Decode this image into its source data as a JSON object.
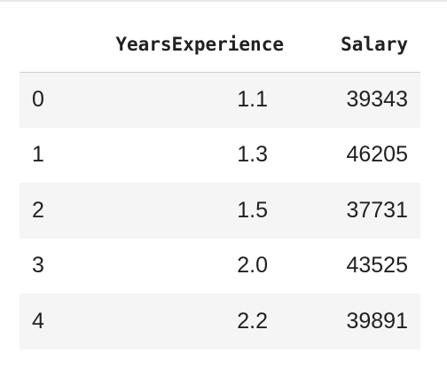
{
  "table": {
    "columns": [
      "",
      "YearsExperience",
      "Salary"
    ],
    "rows": [
      {
        "index": "0",
        "years_experience": "1.1",
        "salary": "39343"
      },
      {
        "index": "1",
        "years_experience": "1.3",
        "salary": "46205"
      },
      {
        "index": "2",
        "years_experience": "1.5",
        "salary": "37731"
      },
      {
        "index": "3",
        "years_experience": "2.0",
        "salary": "43525"
      },
      {
        "index": "4",
        "years_experience": "2.2",
        "salary": "39891"
      }
    ],
    "colors": {
      "striped_row": "#f5f5f5",
      "text": "#212121",
      "header_rule": "#d0d0d0"
    }
  }
}
